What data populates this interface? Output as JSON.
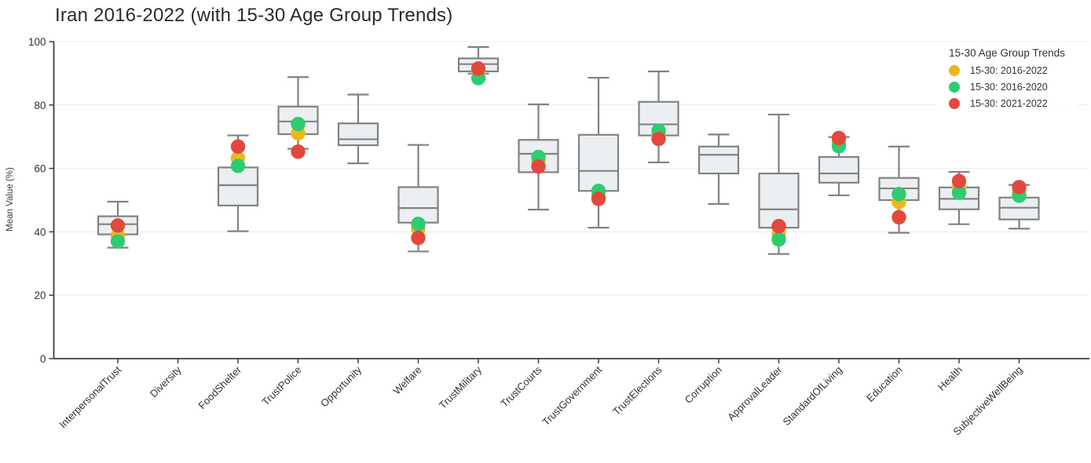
{
  "title": "Iran 2016-2022 (with 15-30 Age Group Trends)",
  "legend": {
    "title": "15-30 Age Group Trends",
    "items": [
      {
        "label": "15-30: 2016-2022",
        "color": "#EDB71B"
      },
      {
        "label": "15-30: 2016-2020",
        "color": "#2ECC71"
      },
      {
        "label": "15-30: 2021-2022",
        "color": "#E2483D"
      }
    ]
  },
  "colors": {
    "box_fill": "#ECEFF1",
    "box_stroke": "#828282",
    "grid": "#ECECEC",
    "axis": "#3d3d3d",
    "tick_text": "#333333",
    "yellow": "#EDB71B",
    "green": "#2ECC71",
    "red": "#E2483D"
  },
  "chart_data": {
    "type": "box",
    "title": "Iran 2016-2022 (with 15-30 Age Group Trends)",
    "xlabel": "",
    "ylabel": "Mean Value (%)",
    "ylim": [
      0,
      100
    ],
    "yticks": [
      0,
      20,
      40,
      60,
      80,
      100
    ],
    "grid": true,
    "legend_position": "top-right",
    "categories": [
      "InterpersonalTrust",
      "Diversity",
      "FoodShelter",
      "TrustPolice",
      "Opportunity",
      "Welfare",
      "TrustMilitary",
      "TrustCourts",
      "TrustGovernment",
      "TrustElections",
      "Corruption",
      "ApprovalLeader",
      "StandardOfLiving",
      "Education",
      "Health",
      "SubjectiveWellBeing"
    ],
    "boxes": [
      {
        "whisker_low": 35.0,
        "q1": 39.2,
        "median": 42.4,
        "q3": 44.9,
        "whisker_high": 49.5
      },
      null,
      {
        "whisker_low": 40.2,
        "q1": 48.3,
        "median": 54.7,
        "q3": 60.3,
        "whisker_high": 70.4
      },
      {
        "whisker_low": 66.2,
        "q1": 70.8,
        "median": 74.8,
        "q3": 79.5,
        "whisker_high": 88.8
      },
      {
        "whisker_low": 61.6,
        "q1": 67.3,
        "median": 69.2,
        "q3": 74.2,
        "whisker_high": 83.3
      },
      {
        "whisker_low": 33.8,
        "q1": 42.9,
        "median": 47.5,
        "q3": 54.1,
        "whisker_high": 67.4
      },
      {
        "whisker_low": 89.9,
        "q1": 90.6,
        "median": 92.9,
        "q3": 94.7,
        "whisker_high": 98.3
      },
      {
        "whisker_low": 47.0,
        "q1": 58.8,
        "median": 64.6,
        "q3": 69.0,
        "whisker_high": 80.2
      },
      {
        "whisker_low": 41.3,
        "q1": 52.9,
        "median": 59.2,
        "q3": 70.6,
        "whisker_high": 88.6
      },
      {
        "whisker_low": 61.9,
        "q1": 70.4,
        "median": 73.9,
        "q3": 81.0,
        "whisker_high": 90.6
      },
      {
        "whisker_low": 48.8,
        "q1": 58.4,
        "median": 64.3,
        "q3": 66.9,
        "whisker_high": 70.7
      },
      {
        "whisker_low": 33.0,
        "q1": 41.3,
        "median": 47.1,
        "q3": 58.4,
        "whisker_high": 77.0
      },
      {
        "whisker_low": 51.5,
        "q1": 55.5,
        "median": 58.4,
        "q3": 63.6,
        "whisker_high": 69.9
      },
      {
        "whisker_low": 39.7,
        "q1": 50.0,
        "median": 53.7,
        "q3": 57.0,
        "whisker_high": 66.9
      },
      {
        "whisker_low": 42.4,
        "q1": 47.1,
        "median": 50.4,
        "q3": 54.0,
        "whisker_high": 58.9
      },
      {
        "whisker_low": 41.0,
        "q1": 43.9,
        "median": 47.6,
        "q3": 50.8,
        "whisker_high": 54.8
      }
    ],
    "dot_series": [
      {
        "name": "15-30: 2016-2022",
        "color": "#EDB71B",
        "values": [
          38.8,
          null,
          63.2,
          71.1,
          null,
          41.0,
          90.2,
          62.2,
          51.5,
          70.8,
          null,
          39.5,
          68.2,
          49.4,
          54.0,
          52.5
        ]
      },
      {
        "name": "15-30: 2016-2020",
        "color": "#2ECC71",
        "values": [
          37.0,
          null,
          60.8,
          74.0,
          null,
          42.5,
          88.5,
          63.6,
          52.9,
          71.9,
          null,
          37.6,
          67.0,
          51.9,
          52.3,
          51.4
        ]
      },
      {
        "name": "15-30: 2021-2022",
        "color": "#E2483D",
        "values": [
          42.0,
          null,
          66.9,
          65.3,
          null,
          38.1,
          91.5,
          60.6,
          50.4,
          69.3,
          null,
          41.8,
          69.6,
          44.6,
          56.0,
          54.1
        ]
      }
    ]
  }
}
